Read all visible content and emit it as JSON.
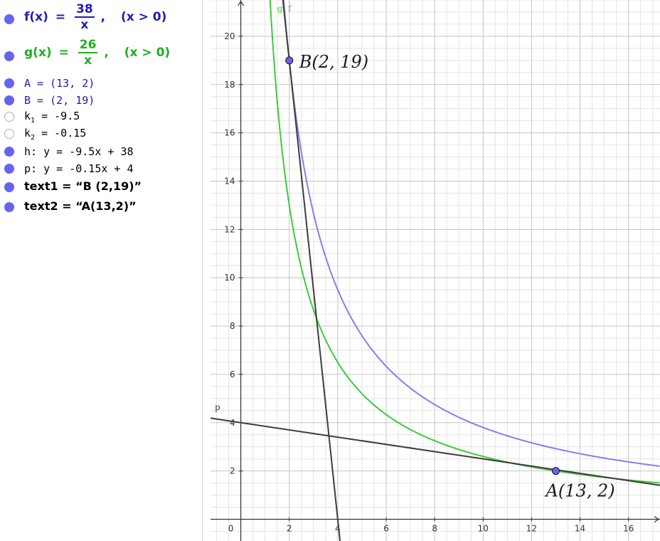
{
  "algebra": {
    "f": {
      "name": "f(x)",
      "eq": "=",
      "num": "38",
      "den": "x",
      "comma": ",",
      "cond": "(x > 0)",
      "color": "#1e1eb4"
    },
    "g": {
      "name": "g(x)",
      "eq": "=",
      "num": "26",
      "den": "x",
      "comma": ",",
      "cond": "(x > 0)",
      "color": "#1cb01c"
    },
    "A": "A = (13, 2)",
    "B": "B = (2, 19)",
    "k1": {
      "base": "k",
      "sub": "1",
      "rest": " = -9.5"
    },
    "k2": {
      "base": "k",
      "sub": "2",
      "rest": " = -0.15"
    },
    "h": "h: y = -9.5x + 38",
    "p": "p: y = -0.15x + 4",
    "text1": "text1 = “B (2,19)”",
    "text2": "text2 = “A(13,2)”"
  },
  "graph_labels": {
    "B": "B(2, 19)",
    "A": "A(13, 2)",
    "f": "f",
    "g": "g",
    "p": "p"
  },
  "colors": {
    "f": "#8080f0",
    "g": "#3ccc3c",
    "line": "#3c3c3c",
    "point": "#6464f0",
    "blue_text": "#1e1eb4",
    "green_text": "#1cb01c"
  },
  "chart_data": {
    "type": "line",
    "xlim": [
      -1.25,
      17.3
    ],
    "ylim": [
      -0.9,
      21.5
    ],
    "x_ticks": [
      0,
      2,
      4,
      6,
      8,
      10,
      12,
      14,
      16
    ],
    "y_ticks": [
      2,
      4,
      6,
      8,
      10,
      12,
      14,
      16,
      18,
      20
    ],
    "grid": true,
    "minor_grid_step": 0.5,
    "series": [
      {
        "name": "f",
        "formula": "38/x",
        "domain": "x>0",
        "color": "#8080f0"
      },
      {
        "name": "g",
        "formula": "26/x",
        "domain": "x>0",
        "color": "#3ccc3c"
      },
      {
        "name": "h",
        "formula": "-9.5x + 38",
        "color": "#3c3c3c"
      },
      {
        "name": "p",
        "formula": "-0.15x + 4",
        "color": "#3c3c3c"
      }
    ],
    "points": [
      {
        "name": "A",
        "x": 13,
        "y": 2
      },
      {
        "name": "B",
        "x": 2,
        "y": 19
      }
    ]
  }
}
